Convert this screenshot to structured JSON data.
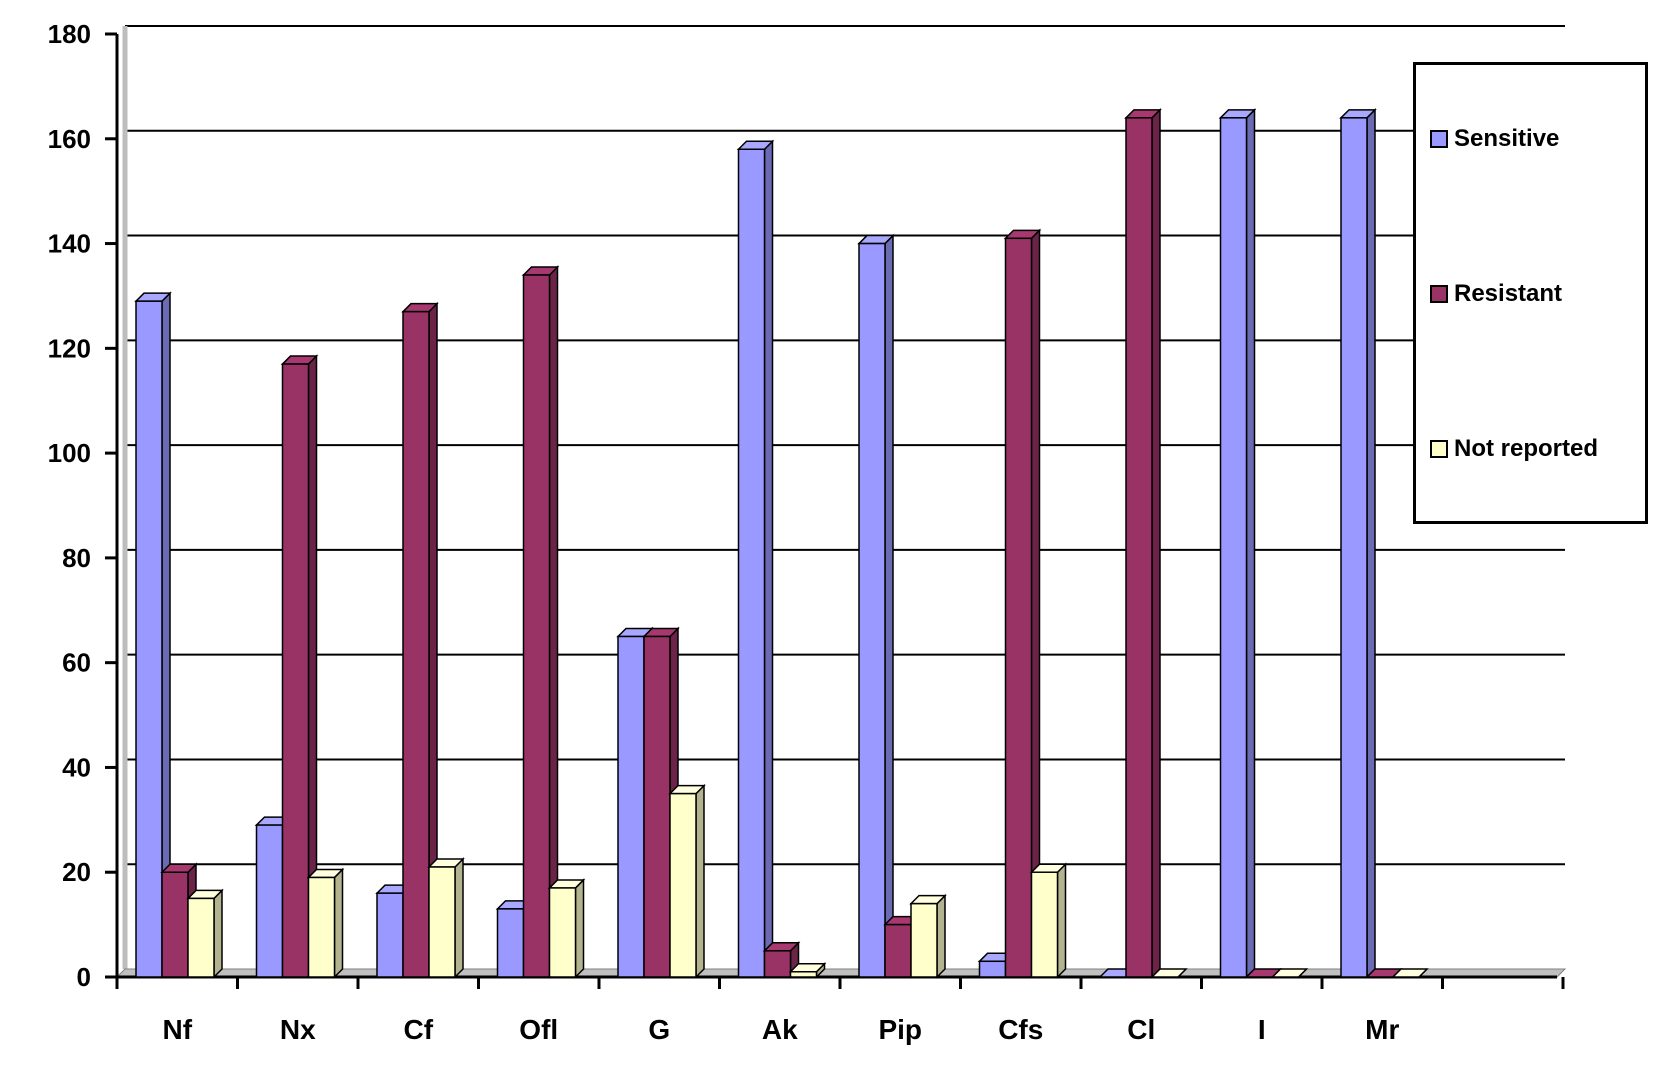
{
  "chart_data": {
    "type": "bar",
    "categories": [
      "Nf",
      "Nx",
      "Cf",
      "Ofl",
      "G",
      "Ak",
      "Pip",
      "Cfs",
      "Cl",
      "I",
      "Mr"
    ],
    "series": [
      {
        "name": "Sensitive",
        "values": [
          129,
          29,
          16,
          13,
          65,
          158,
          140,
          3,
          0,
          164,
          164
        ],
        "color": "#9999ff"
      },
      {
        "name": "Resistant",
        "values": [
          20,
          117,
          127,
          134,
          65,
          5,
          10,
          141,
          164,
          0,
          0
        ],
        "color": "#993366"
      },
      {
        "name": "Not reported",
        "values": [
          15,
          19,
          21,
          17,
          35,
          1,
          14,
          20,
          0,
          0,
          0
        ],
        "color": "#ffffcc"
      }
    ],
    "yticks": [
      "0",
      "20",
      "40",
      "60",
      "80",
      "100",
      "120",
      "140",
      "160",
      "180"
    ],
    "ylim": [
      0,
      180
    ],
    "grid": true,
    "legend": "right"
  }
}
